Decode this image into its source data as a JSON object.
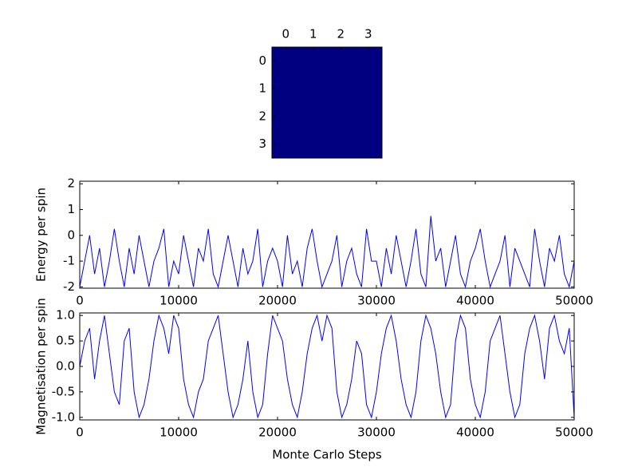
{
  "chart_data": [
    {
      "type": "heatmap",
      "color": "#000080",
      "xticks": [
        0,
        1,
        2,
        3
      ],
      "yticks": [
        0,
        1,
        2,
        3
      ],
      "values": [
        [
          -1,
          -1,
          -1,
          -1
        ],
        [
          -1,
          -1,
          -1,
          -1
        ],
        [
          -1,
          -1,
          -1,
          -1
        ],
        [
          -1,
          -1,
          -1,
          -1
        ]
      ]
    },
    {
      "type": "line",
      "ylabel": "Energy per spin",
      "color": "#0000ff",
      "xlim": [
        0,
        50000
      ],
      "ylim": [
        -2.05,
        2.1
      ],
      "xticks": [
        0,
        10000,
        20000,
        30000,
        40000,
        50000
      ],
      "yticks": [
        -2,
        -1,
        0,
        1,
        2
      ],
      "x": [
        0,
        500,
        1000,
        1500,
        2000,
        2500,
        3000,
        3500,
        4000,
        4500,
        5000,
        5500,
        6000,
        6500,
        7000,
        7500,
        8000,
        8500,
        9000,
        9500,
        10000,
        10500,
        11000,
        11500,
        12000,
        12500,
        13000,
        13500,
        14000,
        14500,
        15000,
        15500,
        16000,
        16500,
        17000,
        17500,
        18000,
        18500,
        19000,
        19500,
        20000,
        20500,
        21000,
        21500,
        22000,
        22500,
        23000,
        23500,
        24000,
        24500,
        25000,
        25500,
        26000,
        26500,
        27000,
        27500,
        28000,
        28500,
        29000,
        29500,
        30000,
        30500,
        31000,
        31500,
        32000,
        32500,
        33000,
        33500,
        34000,
        34500,
        35000,
        35500,
        36000,
        36500,
        37000,
        37500,
        38000,
        38500,
        39000,
        39500,
        40000,
        40500,
        41000,
        41500,
        42000,
        42500,
        43000,
        43500,
        44000,
        44500,
        45000,
        45500,
        46000,
        46500,
        47000,
        47500,
        48000,
        48500,
        49000,
        49500,
        50000
      ],
      "values": [
        -2,
        -1,
        0,
        -1.5,
        -0.5,
        -2,
        -1,
        0.25,
        -1,
        -2,
        -0.5,
        -1.5,
        0,
        -1,
        -2,
        -1,
        -0.5,
        0.25,
        -2,
        -1,
        -1.5,
        0,
        -1,
        -2,
        -0.5,
        -1,
        0.25,
        -1.5,
        -2,
        -1,
        0,
        -1,
        -2,
        -0.5,
        -1.5,
        -1,
        0.25,
        -2,
        -1,
        -0.5,
        -1,
        -2,
        0,
        -1.5,
        -1,
        -2,
        -0.5,
        0.25,
        -1,
        -2,
        -1.5,
        -1,
        0,
        -2,
        -1,
        -0.5,
        -1.5,
        -2,
        0.25,
        -1,
        -1,
        -2,
        -0.5,
        -1.5,
        0,
        -1,
        -2,
        -1,
        0.25,
        -1.5,
        -2,
        0.75,
        -1,
        -0.5,
        -2,
        -1,
        0,
        -1.5,
        -2,
        -1,
        -0.5,
        0.25,
        -1,
        -2,
        -1.5,
        -1,
        0,
        -2,
        -0.5,
        -1,
        -1.5,
        -2,
        0.25,
        -1,
        -2,
        -0.5,
        -1,
        0,
        -1.5,
        -2,
        -1
      ]
    },
    {
      "type": "line",
      "ylabel": "Magnetisation per spin",
      "xlabel": "Monte Carlo Steps",
      "color": "#0000ff",
      "xlim": [
        0,
        50000
      ],
      "ylim": [
        -1.05,
        1.05
      ],
      "xticks": [
        0,
        10000,
        20000,
        30000,
        40000,
        50000
      ],
      "yticks": [
        {
          "value": -1,
          "label": "-1.0"
        },
        -0.5,
        {
          "value": 0,
          "label": "0.0"
        },
        0.5,
        {
          "value": 1,
          "label": "1.0"
        }
      ],
      "x": [
        0,
        500,
        1000,
        1500,
        2000,
        2500,
        3000,
        3500,
        4000,
        4500,
        5000,
        5500,
        6000,
        6500,
        7000,
        7500,
        8000,
        8500,
        9000,
        9500,
        10000,
        10500,
        11000,
        11500,
        12000,
        12500,
        13000,
        13500,
        14000,
        14500,
        15000,
        15500,
        16000,
        16500,
        17000,
        17500,
        18000,
        18500,
        19000,
        19500,
        20000,
        20500,
        21000,
        21500,
        22000,
        22500,
        23000,
        23500,
        24000,
        24500,
        25000,
        25500,
        26000,
        26500,
        27000,
        27500,
        28000,
        28500,
        29000,
        29500,
        30000,
        30500,
        31000,
        31500,
        32000,
        32500,
        33000,
        33500,
        34000,
        34500,
        35000,
        35500,
        36000,
        36500,
        37000,
        37500,
        38000,
        38500,
        39000,
        39500,
        40000,
        40500,
        41000,
        41500,
        42000,
        42500,
        43000,
        43500,
        44000,
        44500,
        45000,
        45500,
        46000,
        46500,
        47000,
        47500,
        48000,
        48500,
        49000,
        49500,
        50000
      ],
      "values": [
        0,
        0.5,
        0.75,
        -0.25,
        0.5,
        1,
        0.25,
        -0.5,
        -0.75,
        0.5,
        0.75,
        -0.5,
        -1,
        -0.75,
        -0.25,
        0.5,
        1,
        0.75,
        0.25,
        1,
        0.75,
        -0.25,
        -0.75,
        -1,
        -0.5,
        -0.25,
        0.5,
        0.75,
        1,
        0.25,
        -0.5,
        -1,
        -0.75,
        -0.25,
        0.5,
        -0.5,
        -1,
        -0.75,
        0.25,
        1,
        0.75,
        0.5,
        -0.25,
        -0.75,
        -1,
        -0.5,
        0.25,
        0.75,
        1,
        0.5,
        1,
        0.75,
        -0.5,
        -1,
        -0.75,
        -0.25,
        0.5,
        0.25,
        -0.75,
        -1,
        -0.5,
        0.25,
        0.75,
        1,
        0.5,
        -0.25,
        -0.75,
        -1,
        -0.5,
        0.5,
        1,
        0.75,
        0.25,
        -0.5,
        -1,
        -0.75,
        0.5,
        1,
        0.75,
        -0.25,
        -0.75,
        -1,
        -0.5,
        0.5,
        0.75,
        1,
        0.25,
        -0.5,
        -1,
        -0.75,
        0.25,
        0.75,
        1,
        0.5,
        -0.25,
        0.75,
        1,
        0.5,
        0.25,
        0.75,
        -1
      ]
    }
  ]
}
